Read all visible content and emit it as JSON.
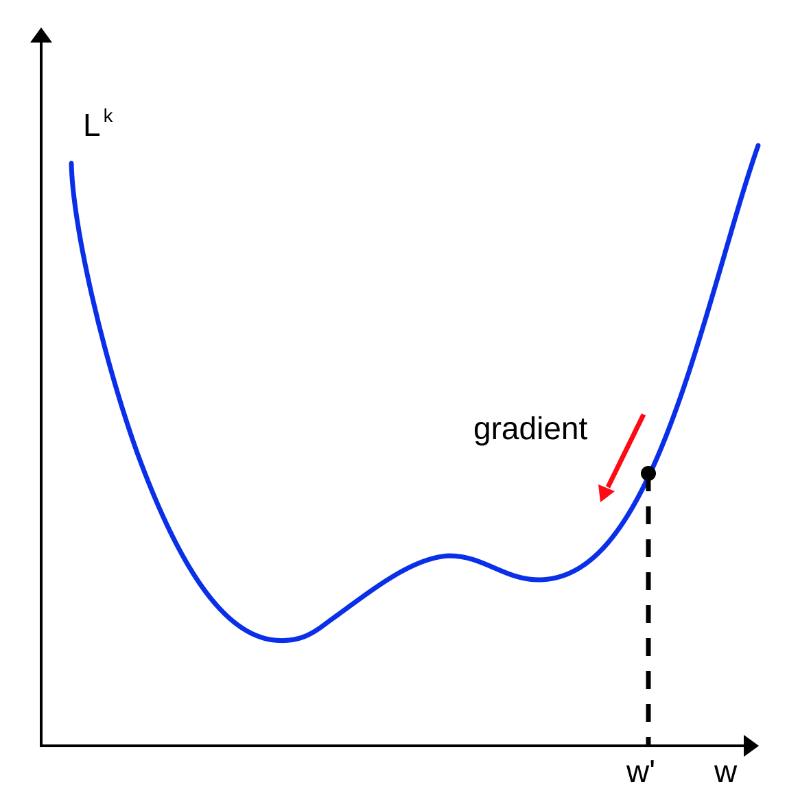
{
  "labels": {
    "y_axis": "L",
    "y_axis_superscript": "k",
    "x_axis": "w",
    "point": "w'",
    "gradient": "gradient"
  },
  "colors": {
    "axis": "#000000",
    "curve": "#0a2fe8",
    "gradient_arrow": "#ff0a14",
    "point": "#000000",
    "background": "#ffffff"
  }
}
